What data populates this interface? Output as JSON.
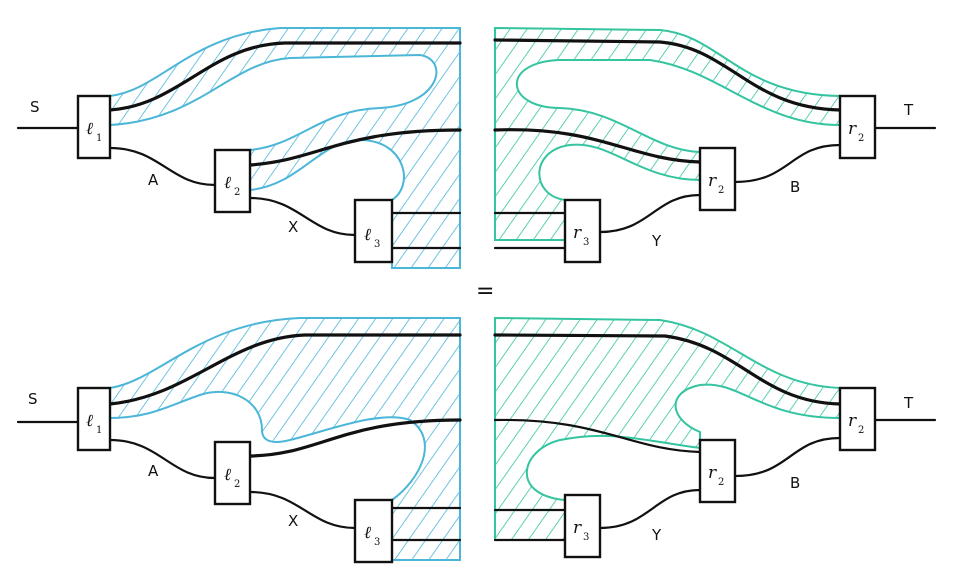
{
  "colors": {
    "left_hatch": "#4bb6d8",
    "right_hatch": "#34c4a0",
    "ink": "#111111"
  },
  "equation": {
    "symbol": "="
  },
  "top": {
    "left": {
      "wire_S": "S",
      "wire_A": "A",
      "wire_X": "X",
      "boxes": [
        {
          "letter": "ℓ",
          "sub": "1"
        },
        {
          "letter": "ℓ",
          "sub": "2"
        },
        {
          "letter": "ℓ",
          "sub": "3"
        }
      ]
    },
    "right": {
      "wire_T": "T",
      "wire_B": "B",
      "wire_Y": "Y",
      "boxes": [
        {
          "letter": "r",
          "sub": "2"
        },
        {
          "letter": "r",
          "sub": "2"
        },
        {
          "letter": "r",
          "sub": "3"
        }
      ]
    }
  },
  "bottom": {
    "left": {
      "wire_S": "S",
      "wire_A": "A",
      "wire_X": "X",
      "boxes": [
        {
          "letter": "ℓ",
          "sub": "1"
        },
        {
          "letter": "ℓ",
          "sub": "2"
        },
        {
          "letter": "ℓ",
          "sub": "3"
        }
      ]
    },
    "right": {
      "wire_T": "T",
      "wire_B": "B",
      "wire_Y": "Y",
      "boxes": [
        {
          "letter": "r",
          "sub": "2"
        },
        {
          "letter": "r",
          "sub": "2"
        },
        {
          "letter": "r",
          "sub": "3"
        }
      ]
    }
  }
}
